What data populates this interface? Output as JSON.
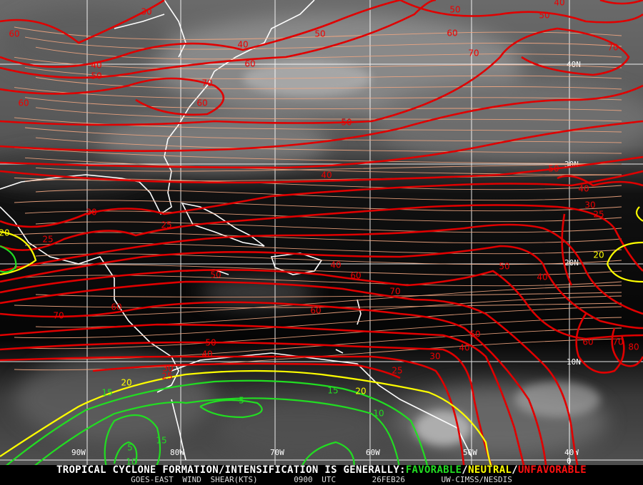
{
  "product": {
    "headline": "TROPICAL CYCLONE FORMATION/INTENSIFICATION IS GENERALLY:",
    "legend": [
      {
        "label": "FAVORABLE",
        "color": "#22dd22"
      },
      {
        "label": "/",
        "color": "#ffffff"
      },
      {
        "label": "NEUTRAL",
        "color": "#ffff00"
      },
      {
        "label": "/",
        "color": "#ffffff"
      },
      {
        "label": "UNFAVORABLE",
        "color": "#ff1010"
      }
    ],
    "satellite_product": "GOES-EAST WIND SHEAR(KTS)",
    "time": "0900 UTC",
    "date": "26FEB26",
    "source": "UW-CIMSS/NESDIS"
  },
  "grid": {
    "longitudes": [
      "90W",
      "80W",
      "70W",
      "60W",
      "50W",
      "40W"
    ],
    "latitudes": [
      "40N",
      "30N",
      "20N",
      "10N",
      "0"
    ]
  },
  "colors": {
    "unfavorable": "#ee0000",
    "neutral": "#ffff00",
    "favorable": "#22dd22",
    "streamline": "#f4a882",
    "coast": "#ffffff",
    "grid": "#ffffff"
  },
  "contour_labels": {
    "red": [
      "30",
      "60",
      "40",
      "50",
      "40",
      "50",
      "60",
      "50",
      "50",
      "60",
      "70",
      "70",
      "40",
      "70",
      "60",
      "60",
      "50",
      "40",
      "50",
      "40",
      "30",
      "25",
      "30",
      "25",
      "25",
      "50",
      "40",
      "60",
      "70",
      "50",
      "40",
      "70",
      "60",
      "60",
      "50",
      "40",
      "50",
      "40",
      "30",
      "25",
      "30",
      "25",
      "60",
      "70",
      "80"
    ],
    "yellow": [
      "20",
      "20",
      "20",
      "20"
    ],
    "green": [
      "15",
      "15",
      "5",
      "10",
      "15",
      "5",
      "10"
    ]
  }
}
